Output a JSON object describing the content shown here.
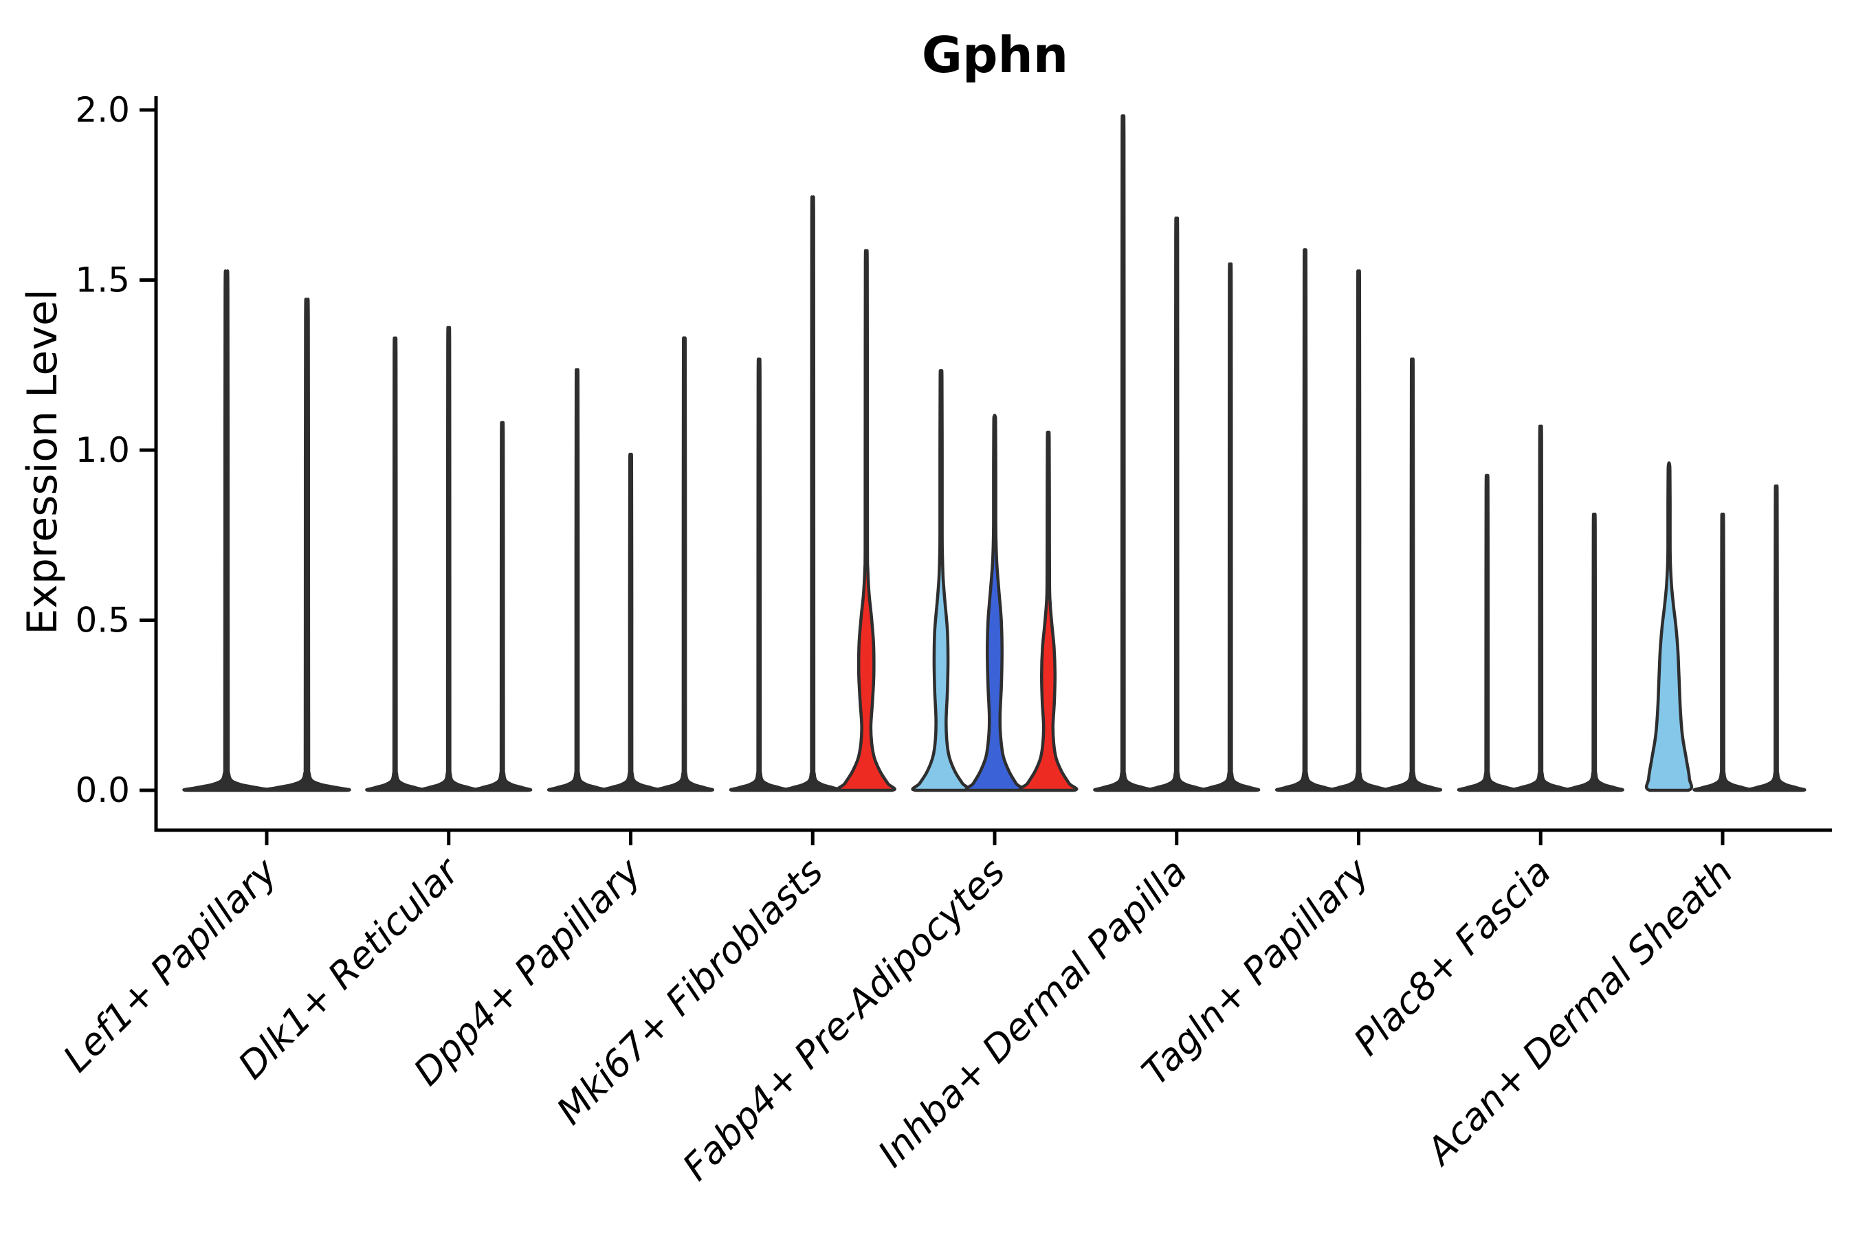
{
  "title": "Gphn",
  "ylabel": "Expression Level",
  "colors": {
    "plain": "#2f2f2f",
    "red": "#ee2b23",
    "light_blue": "#85c7e9",
    "dark_blue": "#3b62d6",
    "outline": "#2e2e2e",
    "text": "#000000"
  },
  "chart_data": {
    "type": "violin",
    "title": "Gphn",
    "xlabel": "",
    "ylabel": "Expression Level",
    "ylim": [
      0,
      2
    ],
    "yticks": [
      0.0,
      0.5,
      1.0,
      1.5,
      2.0
    ],
    "ytick_labels": [
      "0.0",
      "0.5",
      "1.0",
      "1.5",
      "2.0"
    ],
    "legend": "none",
    "grid": false,
    "groups": [
      {
        "label": "Lef1+ Papillary",
        "violins": [
          {
            "max": 1.49,
            "color": "plain",
            "profile": "spike"
          },
          {
            "max": 1.41,
            "color": "plain",
            "profile": "spike"
          }
        ]
      },
      {
        "label": "Dlk1+ Reticular",
        "violins": [
          {
            "max": 1.3,
            "color": "plain",
            "profile": "spike"
          },
          {
            "max": 1.33,
            "color": "plain",
            "profile": "spike"
          },
          {
            "max": 1.06,
            "color": "plain",
            "profile": "spike"
          }
        ]
      },
      {
        "label": "Dpp4+ Papillary",
        "violins": [
          {
            "max": 1.21,
            "color": "plain",
            "profile": "spike"
          },
          {
            "max": 0.97,
            "color": "plain",
            "profile": "spike"
          },
          {
            "max": 1.3,
            "color": "plain",
            "profile": "spike"
          }
        ]
      },
      {
        "label": "Mki67+ Fibroblasts",
        "violins": [
          {
            "max": 1.24,
            "color": "plain",
            "profile": "spike"
          },
          {
            "max": 1.7,
            "color": "plain",
            "profile": "spike"
          },
          {
            "max": 1.57,
            "color": "red",
            "profile": "body_red"
          }
        ]
      },
      {
        "label": "Fabp4+ Pre-Adipocytes",
        "violins": [
          {
            "max": 1.23,
            "color": "light_blue",
            "profile": "body_lblue"
          },
          {
            "max": 1.1,
            "color": "dark_blue",
            "profile": "body_dblue"
          },
          {
            "max": 1.05,
            "color": "red",
            "profile": "body_red2"
          }
        ]
      },
      {
        "label": "Inhba+ Dermal Papilla",
        "violins": [
          {
            "max": 1.93,
            "color": "plain",
            "profile": "spike"
          },
          {
            "max": 1.64,
            "color": "plain",
            "profile": "spike"
          },
          {
            "max": 1.51,
            "color": "plain",
            "profile": "spike"
          }
        ]
      },
      {
        "label": "Tagln+ Papillary",
        "violins": [
          {
            "max": 1.55,
            "color": "plain",
            "profile": "spike"
          },
          {
            "max": 1.49,
            "color": "plain",
            "profile": "spike"
          },
          {
            "max": 1.24,
            "color": "plain",
            "profile": "spike"
          }
        ]
      },
      {
        "label": "Plac8+ Fascia",
        "violins": [
          {
            "max": 0.91,
            "color": "plain",
            "profile": "spike"
          },
          {
            "max": 1.05,
            "color": "plain",
            "profile": "spike"
          },
          {
            "max": 0.8,
            "color": "plain",
            "profile": "spike"
          }
        ]
      },
      {
        "label": "Acan+ Dermal Sheath",
        "violins": [
          {
            "max": 0.96,
            "color": "light_blue",
            "profile": "body_talon"
          },
          {
            "max": 0.8,
            "color": "plain",
            "profile": "spike"
          },
          {
            "max": 0.88,
            "color": "plain",
            "profile": "spike"
          }
        ]
      }
    ],
    "profiles": {
      "spike": [
        [
          0,
          0.95
        ],
        [
          0.007,
          0.78
        ],
        [
          0.016,
          0.38
        ],
        [
          0.028,
          0.13
        ],
        [
          0.05,
          0.055
        ],
        [
          0.09,
          0.042
        ]
      ],
      "body_red": [
        [
          0,
          0.95
        ],
        [
          0.02,
          0.8
        ],
        [
          0.055,
          0.52
        ],
        [
          0.095,
          0.3
        ],
        [
          0.14,
          0.2
        ],
        [
          0.19,
          0.17
        ],
        [
          0.26,
          0.23
        ],
        [
          0.34,
          0.28
        ],
        [
          0.43,
          0.27
        ],
        [
          0.51,
          0.19
        ],
        [
          0.58,
          0.1
        ],
        [
          0.65,
          0.055
        ],
        [
          0.72,
          0.042
        ]
      ],
      "body_lblue": [
        [
          0,
          0.95
        ],
        [
          0.02,
          0.8
        ],
        [
          0.055,
          0.52
        ],
        [
          0.1,
          0.3
        ],
        [
          0.15,
          0.21
        ],
        [
          0.21,
          0.19
        ],
        [
          0.29,
          0.235
        ],
        [
          0.38,
          0.26
        ],
        [
          0.47,
          0.235
        ],
        [
          0.55,
          0.15
        ],
        [
          0.62,
          0.08
        ],
        [
          0.69,
          0.05
        ],
        [
          0.75,
          0.042
        ]
      ],
      "body_dblue": [
        [
          0,
          0.95
        ],
        [
          0.02,
          0.8
        ],
        [
          0.055,
          0.54
        ],
        [
          0.1,
          0.32
        ],
        [
          0.16,
          0.22
        ],
        [
          0.22,
          0.2
        ],
        [
          0.31,
          0.25
        ],
        [
          0.41,
          0.275
        ],
        [
          0.5,
          0.245
        ],
        [
          0.59,
          0.155
        ],
        [
          0.66,
          0.085
        ],
        [
          0.73,
          0.05
        ],
        [
          0.79,
          0.042
        ]
      ],
      "body_red2": [
        [
          0,
          0.95
        ],
        [
          0.02,
          0.78
        ],
        [
          0.055,
          0.5
        ],
        [
          0.095,
          0.29
        ],
        [
          0.14,
          0.2
        ],
        [
          0.19,
          0.175
        ],
        [
          0.26,
          0.225
        ],
        [
          0.34,
          0.25
        ],
        [
          0.42,
          0.215
        ],
        [
          0.49,
          0.13
        ],
        [
          0.55,
          0.07
        ],
        [
          0.61,
          0.045
        ]
      ],
      "body_talon": [
        [
          0,
          0.72
        ],
        [
          0.035,
          0.76
        ],
        [
          0.09,
          0.65
        ],
        [
          0.16,
          0.5
        ],
        [
          0.24,
          0.42
        ],
        [
          0.33,
          0.375
        ],
        [
          0.41,
          0.33
        ],
        [
          0.48,
          0.26
        ],
        [
          0.54,
          0.17
        ],
        [
          0.6,
          0.095
        ],
        [
          0.66,
          0.055
        ],
        [
          0.71,
          0.042
        ]
      ]
    }
  }
}
